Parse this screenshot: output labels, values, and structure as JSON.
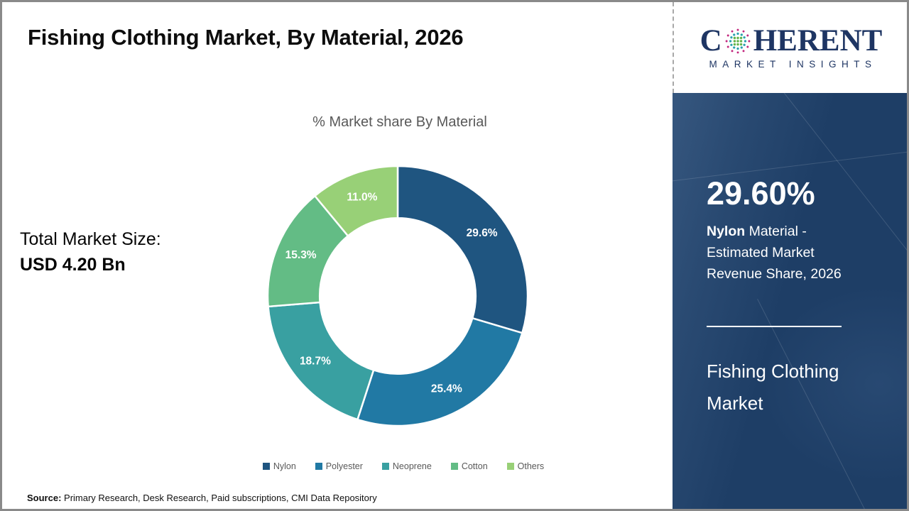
{
  "slide": {
    "title": "Fishing Clothing Market, By Material, 2026",
    "source": {
      "label": "Source:",
      "text": " Primary Research, Desk Research, Paid subscriptions, CMI Data Repository"
    }
  },
  "logo": {
    "brand_prefix": "C",
    "brand_suffix": "HERENT",
    "brand_subtitle": "MARKET INSIGHTS",
    "brand_color": "#1E3563"
  },
  "overview": {
    "market_size_label": "Total Market Size:",
    "market_size_value": "USD 4.20 Bn"
  },
  "chart_data": {
    "type": "pie",
    "subtype": "donut",
    "title": "% Market share By Material",
    "categories": [
      "Nylon",
      "Polyester",
      "Neoprene",
      "Cotton",
      "Others"
    ],
    "values": [
      29.6,
      25.4,
      18.7,
      15.3,
      11.0
    ],
    "labels": [
      "29.6%",
      "25.4%",
      "18.7%",
      "15.3%",
      "11.0%"
    ],
    "colors": [
      "#1F5580",
      "#2179A4",
      "#39A0A1",
      "#63BC85",
      "#98D077"
    ],
    "start_angle_deg": 0,
    "direction": "clockwise",
    "inner_radius_ratio": 0.6,
    "legend_position": "bottom",
    "data_label_color": "#FFFFFF"
  },
  "sidebar": {
    "bg_color": "#1E3E66",
    "stat_value": "29.60%",
    "stat_desc_bold": "Nylon",
    "stat_desc_rest": " Material - Estimated Market Revenue Share, 2026",
    "panel_title": "Fishing Clothing Market"
  }
}
